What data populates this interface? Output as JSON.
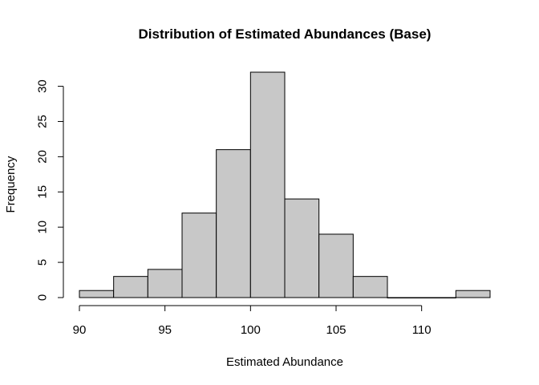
{
  "chart_data": {
    "type": "bar",
    "title": "Distribution of Estimated Abundances (Base)",
    "xlabel": "Estimated Abundance",
    "ylabel": "Frequency",
    "bins": [
      {
        "x0": 90,
        "x1": 92,
        "count": 1
      },
      {
        "x0": 92,
        "x1": 94,
        "count": 3
      },
      {
        "x0": 94,
        "x1": 96,
        "count": 4
      },
      {
        "x0": 96,
        "x1": 98,
        "count": 12
      },
      {
        "x0": 98,
        "x1": 100,
        "count": 21
      },
      {
        "x0": 100,
        "x1": 102,
        "count": 32
      },
      {
        "x0": 102,
        "x1": 104,
        "count": 14
      },
      {
        "x0": 104,
        "x1": 106,
        "count": 9
      },
      {
        "x0": 106,
        "x1": 108,
        "count": 3
      },
      {
        "x0": 108,
        "x1": 110,
        "count": 0
      },
      {
        "x0": 110,
        "x1": 112,
        "count": 0
      },
      {
        "x0": 112,
        "x1": 114,
        "count": 1
      }
    ],
    "xlim": [
      90,
      114
    ],
    "ylim": [
      0,
      32
    ],
    "x_ticks": [
      "90",
      "95",
      "100",
      "105",
      "110"
    ],
    "y_ticks": [
      "0",
      "5",
      "10",
      "15",
      "20",
      "25",
      "30"
    ],
    "bar_color": "#c8c8c8",
    "grid": false,
    "legend": "none"
  }
}
